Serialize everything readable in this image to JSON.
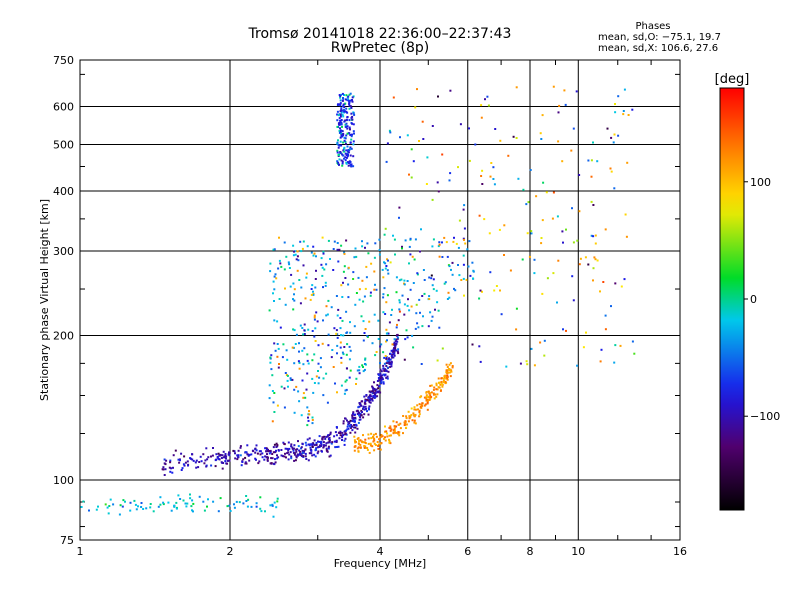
{
  "title": "Tromsø 20141018 22:36:00–22:37:43",
  "subtitle": "RwPretec (8p)",
  "stats": {
    "heading": "Phases",
    "line_o": "mean, sd,O: −75.1, 19.7",
    "line_x": "mean, sd,X: 106.6, 27.6"
  },
  "colorbar": {
    "label": "[deg]",
    "ticks": [
      {
        "value": 100,
        "label": "100"
      },
      {
        "value": 0,
        "label": "0"
      },
      {
        "value": -100,
        "label": "−100"
      }
    ],
    "range": [
      -180,
      180
    ]
  },
  "chart_data": {
    "type": "scatter",
    "title": "Tromsø 20141018 22:36:00–22:37:43",
    "subtitle": "RwPretec (8p)",
    "xlabel": "Frequency [MHz]",
    "ylabel": "Stationary phase Virtual Height [km]",
    "xscale": "log",
    "yscale": "log",
    "xlim": [
      1,
      16
    ],
    "ylim": [
      75,
      750
    ],
    "xticks": [
      {
        "value": 1,
        "label": "1"
      },
      {
        "value": 2,
        "label": "2"
      },
      {
        "value": 4,
        "label": "4"
      },
      {
        "value": 6,
        "label": "6"
      },
      {
        "value": 8,
        "label": "8"
      },
      {
        "value": 10,
        "label": "10"
      },
      {
        "value": 16,
        "label": "16"
      }
    ],
    "yticks": [
      {
        "value": 75,
        "label": "75"
      },
      {
        "value": 100,
        "label": "100"
      },
      {
        "value": 200,
        "label": "200"
      },
      {
        "value": 300,
        "label": "300"
      },
      {
        "value": 400,
        "label": "400"
      },
      {
        "value": 500,
        "label": "500"
      },
      {
        "value": 600,
        "label": "600"
      },
      {
        "value": 750,
        "label": "750"
      }
    ],
    "grid": true,
    "colorscale": "rainbow phase [deg], -180 to 180",
    "clusters": [
      {
        "name": "E-layer",
        "x_range": [
          1.0,
          2.6
        ],
        "y_range": [
          87,
          97
        ],
        "phase": -20
      },
      {
        "name": "O-mode F trace",
        "x_range": [
          1.45,
          4.3
        ],
        "y_range": [
          108,
          200
        ],
        "phase": -100
      },
      {
        "name": "X-mode F trace",
        "x_range": [
          3.6,
          5.6
        ],
        "y_range": [
          118,
          160
        ],
        "phase": 120
      },
      {
        "name": "Spread F",
        "x_range": [
          2.4,
          6.0
        ],
        "y_range": [
          130,
          320
        ],
        "phase": -40
      },
      {
        "name": "High echoes",
        "x_range": [
          3.25,
          3.55
        ],
        "y_range": [
          450,
          640
        ],
        "phase": -60
      }
    ]
  }
}
